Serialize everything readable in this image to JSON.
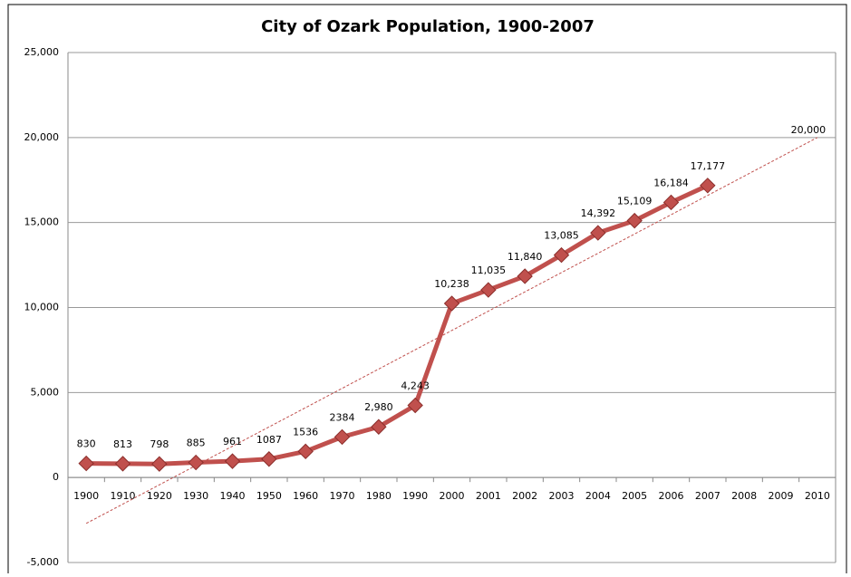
{
  "chart_data": {
    "type": "line",
    "title": "City of Ozark Population, 1900-2007",
    "categories": [
      "1900",
      "1910",
      "1920",
      "1930",
      "1940",
      "1950",
      "1960",
      "1970",
      "1980",
      "1990",
      "2000",
      "2001",
      "2002",
      "2003",
      "2004",
      "2005",
      "2006",
      "2007",
      "2008",
      "2009",
      "2010"
    ],
    "series": [
      {
        "color": "#c0504d",
        "values": [
          830,
          813,
          798,
          885,
          961,
          1087,
          1536,
          2384,
          2980,
          4243,
          10238,
          11035,
          11840,
          13085,
          14392,
          15109,
          16184,
          17177,
          null,
          null,
          null
        ],
        "value_labels": [
          "830",
          "813",
          "798",
          "885",
          "961",
          "1087",
          "1536",
          "2384",
          "2,980",
          "4,243",
          "10,238",
          "11,035",
          "11,840",
          "13,085",
          "14,392",
          "15,109",
          "16,184",
          "17,177",
          null,
          null,
          null
        ]
      }
    ],
    "trendline": {
      "color": "#c0504d",
      "start": -2700,
      "end": 20000,
      "end_label": "20,000"
    },
    "ylim": [
      -5000,
      25000
    ],
    "yticks": [
      {
        "value": -5000,
        "label": "-5,000"
      },
      0,
      {
        "value": 5000,
        "label": "5,000"
      },
      {
        "value": 10000,
        "label": "10,000"
      },
      {
        "value": 15000,
        "label": "15,000"
      },
      {
        "value": 20000,
        "label": "20,000"
      },
      {
        "value": 25000,
        "label": "25,000"
      }
    ],
    "grid": true
  }
}
